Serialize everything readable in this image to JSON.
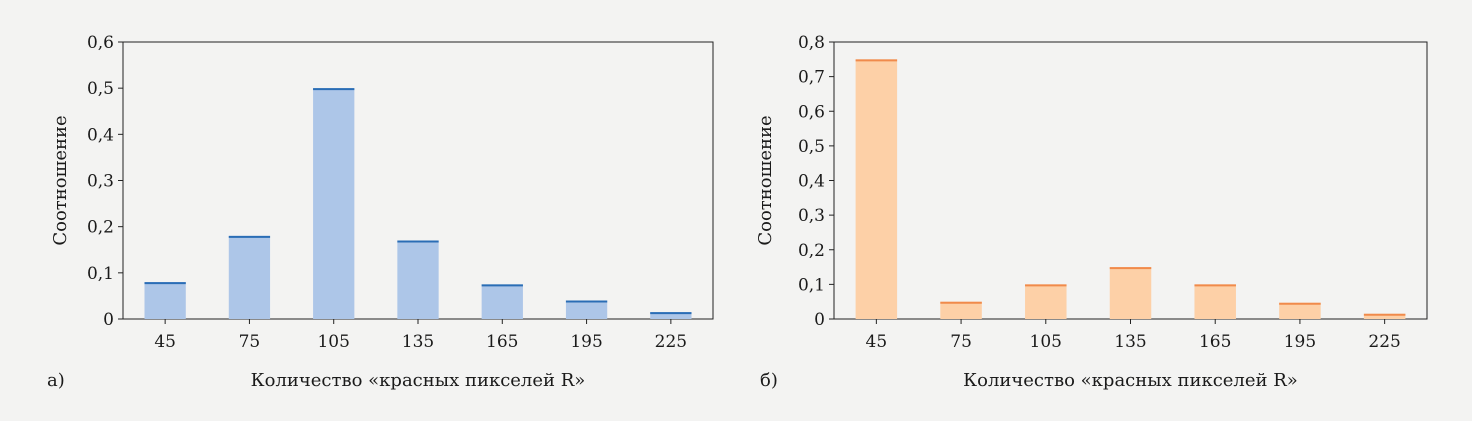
{
  "chart_data": [
    {
      "type": "bar",
      "panel_label": "а)",
      "xlabel": "Количество «красных пикселей R»",
      "ylabel": "Соотношение",
      "categories": [
        "45",
        "75",
        "105",
        "135",
        "165",
        "195",
        "225"
      ],
      "values": [
        0.08,
        0.18,
        0.5,
        0.17,
        0.075,
        0.04,
        0.015
      ],
      "ylim": [
        0,
        0.6
      ],
      "yticks": [
        "0",
        "0,1",
        "0,2",
        "0,3",
        "0,4",
        "0,5",
        "0,6"
      ],
      "bar_color": "#adc6e8",
      "edge_color": "#2a6db5",
      "grid": false
    },
    {
      "type": "bar",
      "panel_label": "б)",
      "xlabel": "Количество «красных пикселей R»",
      "ylabel": "Соотношение",
      "categories": [
        "45",
        "75",
        "105",
        "135",
        "165",
        "195",
        "225"
      ],
      "values": [
        0.75,
        0.05,
        0.1,
        0.15,
        0.1,
        0.047,
        0.015
      ],
      "ylim": [
        0,
        0.8
      ],
      "yticks": [
        "0",
        "0,1",
        "0,2",
        "0,3",
        "0,4",
        "0,5",
        "0,6",
        "0,7",
        "0,8"
      ],
      "bar_color": "#fdd0a7",
      "edge_color": "#f08a4b",
      "grid": false
    }
  ]
}
